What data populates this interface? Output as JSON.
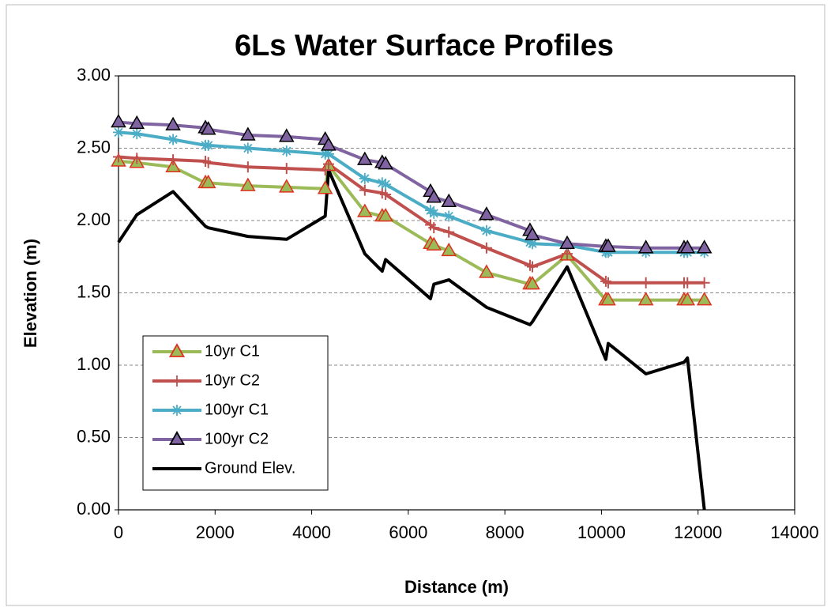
{
  "chart_data": {
    "type": "line",
    "title": "6Ls Water Surface Profiles",
    "x_label": "Distance (m)",
    "y_label": "Elevation (m)",
    "x": [
      0,
      380,
      1130,
      1800,
      1860,
      2680,
      3480,
      4280,
      4350,
      5100,
      5460,
      5530,
      6460,
      6530,
      6840,
      7620,
      8520,
      8570,
      9290,
      10090,
      10140,
      10920,
      11710,
      11780,
      12130
    ],
    "series": [
      {
        "name": "10yr C1",
        "color": "#9bbb59",
        "marker": "triangle",
        "marker_edge": "#e0301e",
        "values": [
          2.41,
          2.4,
          2.37,
          2.26,
          2.26,
          2.24,
          2.23,
          2.22,
          2.38,
          2.06,
          2.03,
          2.03,
          1.84,
          1.83,
          1.79,
          1.64,
          1.56,
          1.56,
          1.76,
          1.45,
          1.45,
          1.45,
          1.45,
          1.45,
          1.45
        ]
      },
      {
        "name": "10yr C2",
        "color": "#c0504d",
        "marker": "plus",
        "values": [
          2.44,
          2.43,
          2.42,
          2.41,
          2.4,
          2.37,
          2.36,
          2.35,
          2.39,
          2.21,
          2.19,
          2.18,
          1.97,
          1.95,
          1.92,
          1.81,
          1.69,
          1.68,
          1.77,
          1.58,
          1.57,
          1.57,
          1.57,
          1.57,
          1.57
        ]
      },
      {
        "name": "100yr C1",
        "color": "#4bacc6",
        "marker": "asterisk",
        "values": [
          2.61,
          2.6,
          2.56,
          2.52,
          2.52,
          2.5,
          2.48,
          2.46,
          2.46,
          2.29,
          2.26,
          2.25,
          2.07,
          2.05,
          2.03,
          1.93,
          1.85,
          1.84,
          1.83,
          1.78,
          1.78,
          1.78,
          1.78,
          1.78,
          1.78
        ]
      },
      {
        "name": "100yr C2",
        "color": "#8064a2",
        "marker": "triangle",
        "marker_edge": "#000000",
        "values": [
          2.68,
          2.67,
          2.66,
          2.64,
          2.63,
          2.59,
          2.58,
          2.56,
          2.52,
          2.42,
          2.4,
          2.39,
          2.2,
          2.16,
          2.13,
          2.04,
          1.93,
          1.9,
          1.84,
          1.82,
          1.82,
          1.81,
          1.81,
          1.81,
          1.81
        ]
      },
      {
        "name": "Ground Elev.",
        "color": "#000000",
        "marker": "none",
        "values": [
          1.85,
          2.04,
          2.2,
          1.96,
          1.95,
          1.89,
          1.87,
          2.03,
          2.35,
          1.77,
          1.65,
          1.73,
          1.46,
          1.56,
          1.59,
          1.4,
          1.28,
          1.3,
          1.68,
          1.04,
          1.15,
          0.94,
          1.02,
          1.05,
          0.0
        ]
      }
    ],
    "xlim": [
      0,
      14000
    ],
    "xticks": [
      0,
      2000,
      4000,
      6000,
      8000,
      10000,
      12000,
      14000
    ],
    "ylim": [
      0,
      3
    ],
    "yticks": [
      {
        "value": 0,
        "label": "0.00"
      },
      {
        "value": 0.5,
        "label": "0.50"
      },
      {
        "value": 1,
        "label": "1.00"
      },
      {
        "value": 1.5,
        "label": "1.50"
      },
      {
        "value": 2,
        "label": "2.00"
      },
      {
        "value": 2.5,
        "label": "2.50"
      },
      {
        "value": 3,
        "label": "3.00"
      }
    ],
    "grid": true,
    "legend": "lower left"
  }
}
